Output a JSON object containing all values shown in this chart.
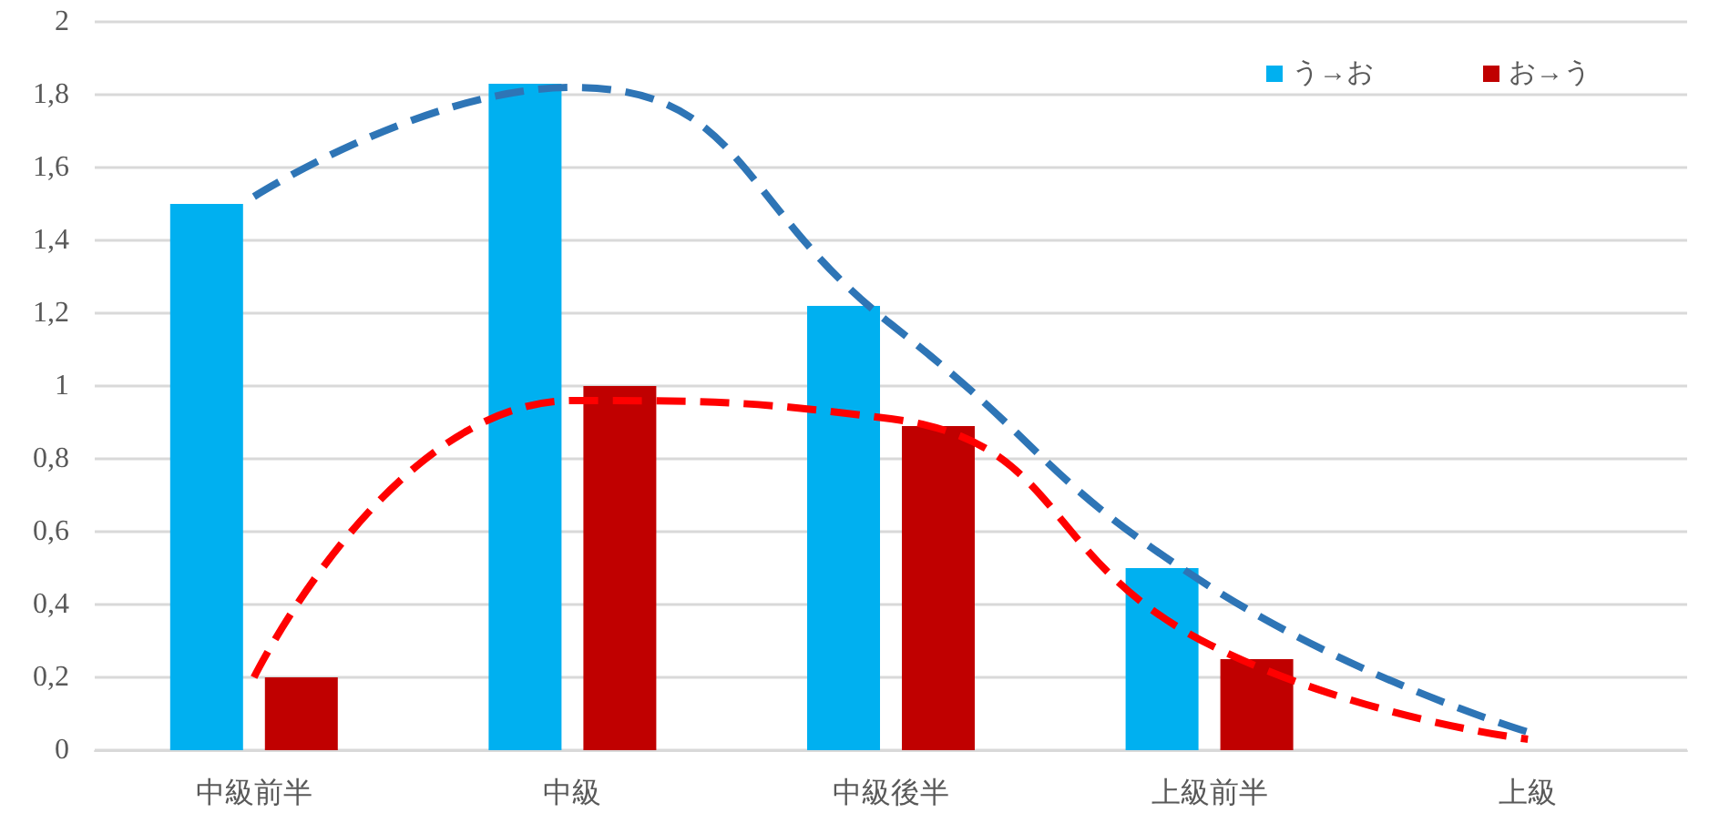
{
  "chart_data": {
    "type": "bar",
    "categories": [
      "中級前半",
      "中級",
      "中級後半",
      "上級前半",
      "上級"
    ],
    "series": [
      {
        "name": "う→お",
        "color": "#00b0f0",
        "values": [
          1.5,
          1.83,
          1.22,
          0.5,
          null
        ]
      },
      {
        "name": "お→う",
        "color": "#c00000",
        "values": [
          0.2,
          1.0,
          0.89,
          0.25,
          null
        ]
      },
      {
        "type": "line",
        "color": "#2e75b6",
        "line_style": "dashed",
        "marker": "none",
        "values": [
          1.52,
          1.82,
          1.17,
          0.45,
          0.05
        ]
      },
      {
        "type": "line",
        "color": "#ff0000",
        "line_style": "dashed",
        "marker": "none",
        "values": [
          0.2,
          0.96,
          0.91,
          0.29,
          0.03
        ]
      }
    ],
    "ylim": [
      0,
      2
    ],
    "yticks": [
      0,
      {
        "value": 0.2,
        "label": "0,2"
      },
      {
        "value": 0.4,
        "label": "0,4"
      },
      {
        "value": 0.6,
        "label": "0,6"
      },
      {
        "value": 0.8,
        "label": "0,8"
      },
      1,
      {
        "value": 1.2,
        "label": "1,2"
      },
      {
        "value": 1.4,
        "label": "1,4"
      },
      {
        "value": 1.6,
        "label": "1,6"
      },
      {
        "value": 1.8,
        "label": "1,8"
      },
      2
    ],
    "grid": "y",
    "legend": "top right"
  }
}
